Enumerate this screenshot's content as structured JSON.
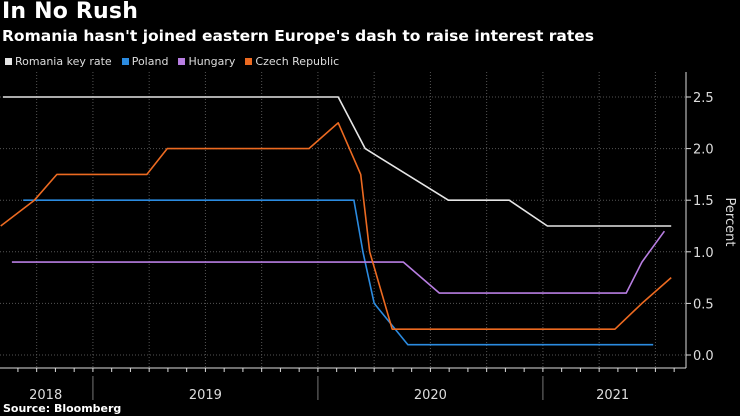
{
  "header": {
    "title": "In No Rush",
    "subtitle": "Romania hasn't joined eastern Europe's dash to raise interest rates"
  },
  "source": "Source: Bloomberg",
  "chart_data": {
    "type": "line",
    "title": "In No Rush",
    "subtitle": "Romania hasn't joined eastern Europe's dash to raise interest rates",
    "ylabel": "Percent",
    "xlabel": "",
    "ylim": [
      0,
      2.7
    ],
    "xlim": [
      2018.587,
      2021.636
    ],
    "yticks": [
      0.0,
      0.5,
      1.0,
      1.5,
      2.0,
      2.5
    ],
    "ytick_labels": [
      "0.0",
      "0.5",
      "1.0",
      "1.5",
      "2.0",
      "2.5"
    ],
    "xtick_labels": [
      {
        "label": "2018",
        "x": 2018.79
      },
      {
        "label": "2019",
        "x": 2019.5
      },
      {
        "label": "2020",
        "x": 2020.5
      },
      {
        "label": "2021",
        "x": 2021.31
      }
    ],
    "year_boundaries": [
      2019,
      2020,
      2021
    ],
    "grid": true,
    "legend_position": "top-left",
    "series": [
      {
        "name": "Romania key rate",
        "color": "#e6e6e6",
        "points": [
          [
            2018.6,
            2.5
          ],
          [
            2020.09,
            2.5
          ],
          [
            2020.21,
            2.0
          ],
          [
            2020.58,
            1.5
          ],
          [
            2020.85,
            1.5
          ],
          [
            2021.02,
            1.25
          ],
          [
            2021.57,
            1.25
          ]
        ]
      },
      {
        "name": "Poland",
        "color": "#2b8be0",
        "points": [
          [
            2018.69,
            1.5
          ],
          [
            2020.16,
            1.5
          ],
          [
            2020.2,
            1.0
          ],
          [
            2020.25,
            0.5
          ],
          [
            2020.4,
            0.1
          ],
          [
            2021.49,
            0.1
          ]
        ]
      },
      {
        "name": "Hungary",
        "color": "#b87ee2",
        "points": [
          [
            2018.64,
            0.9
          ],
          [
            2020.38,
            0.9
          ],
          [
            2020.54,
            0.6
          ],
          [
            2021.37,
            0.6
          ],
          [
            2021.44,
            0.9
          ],
          [
            2021.54,
            1.2
          ]
        ]
      },
      {
        "name": "Czech Republic",
        "color": "#ec6a21",
        "points": [
          [
            2018.59,
            1.25
          ],
          [
            2018.74,
            1.5
          ],
          [
            2018.84,
            1.75
          ],
          [
            2019.24,
            1.75
          ],
          [
            2019.33,
            2.0
          ],
          [
            2019.96,
            2.0
          ],
          [
            2020.09,
            2.25
          ],
          [
            2020.19,
            1.75
          ],
          [
            2020.23,
            1.0
          ],
          [
            2020.33,
            0.25
          ],
          [
            2021.32,
            0.25
          ],
          [
            2021.44,
            0.5
          ],
          [
            2021.57,
            0.75
          ]
        ]
      }
    ]
  }
}
